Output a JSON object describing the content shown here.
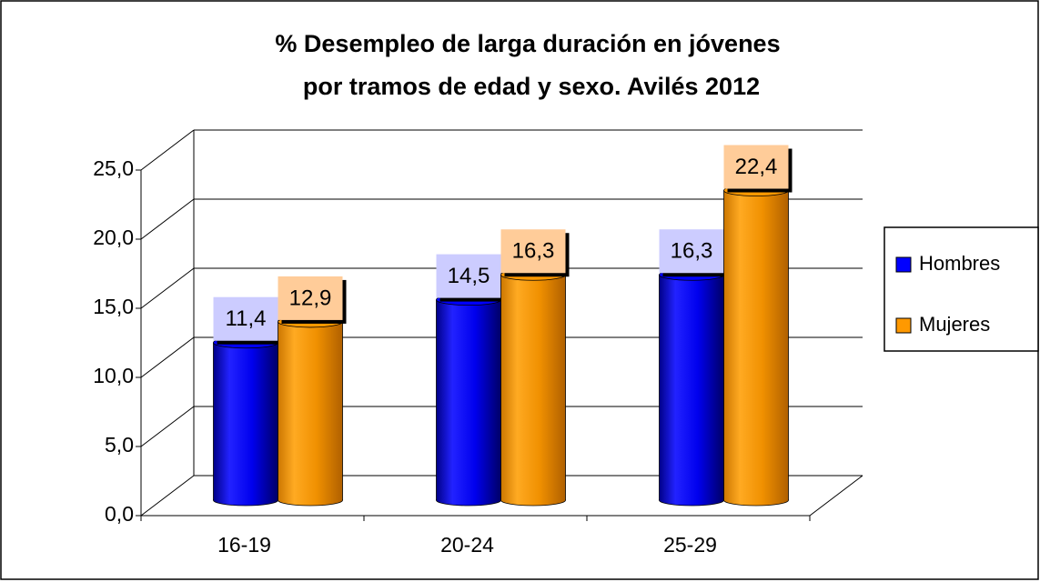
{
  "chart_data": {
    "type": "bar3d",
    "title": [
      "% Desempleo de larga duración en jóvenes",
      "por tramos de edad y sexo. Avilés 2012"
    ],
    "categories": [
      "16-19",
      "20-24",
      "25-29"
    ],
    "series": [
      {
        "name": "Hombres",
        "color": "#0000ff",
        "label_color": "#ccccff",
        "values": [
          11.4,
          14.5,
          16.3
        ],
        "value_labels": [
          "11,4",
          "14,5",
          "16,3"
        ]
      },
      {
        "name": "Mujeres",
        "color": "#ff9900",
        "label_color": "#ffcc99",
        "values": [
          12.9,
          16.3,
          22.4
        ],
        "value_labels": [
          "12,9",
          "16,3",
          "22,4"
        ]
      }
    ],
    "ylim": [
      0,
      25
    ],
    "yticks": [
      {
        "value": 0,
        "label": "0,0"
      },
      {
        "value": 5,
        "label": "5,0"
      },
      {
        "value": 10,
        "label": "10,0"
      },
      {
        "value": 15,
        "label": "15,0"
      },
      {
        "value": 20,
        "label": "20,0"
      },
      {
        "value": 25,
        "label": "25,0"
      }
    ],
    "grid": true,
    "legend": "right"
  }
}
